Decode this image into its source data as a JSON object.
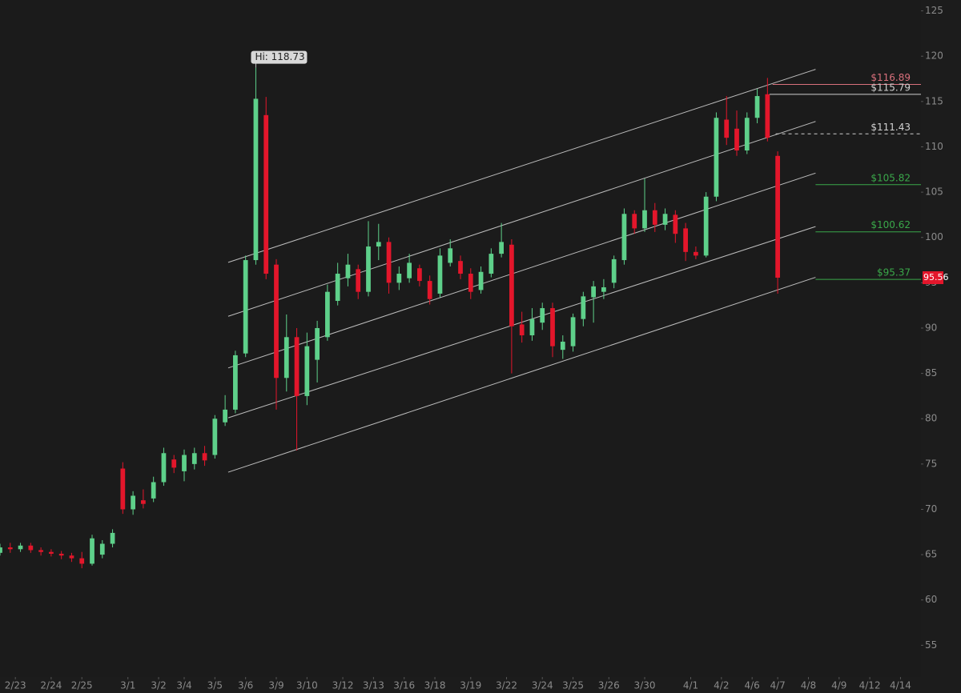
{
  "chart_data": {
    "type": "candlestick",
    "high_label": "Hi: 118.73",
    "last_price": 95.56,
    "up_color": "#5ed08a",
    "down_color": "#e3162b",
    "xlim": [
      0,
      90
    ],
    "ylim": [
      51.5,
      126.2
    ],
    "yticks": [
      55,
      60,
      65,
      70,
      75,
      80,
      85,
      90,
      95,
      100,
      105,
      110,
      115,
      120,
      125
    ],
    "xticks": [
      {
        "value": 1.5,
        "label": "2/23"
      },
      {
        "value": 5,
        "label": "2/24"
      },
      {
        "value": 8,
        "label": "2/25"
      },
      {
        "value": 12.5,
        "label": "3/1"
      },
      {
        "value": 15.5,
        "label": "3/2"
      },
      {
        "value": 18,
        "label": "3/4"
      },
      {
        "value": 21,
        "label": "3/5"
      },
      {
        "value": 24,
        "label": "3/6"
      },
      {
        "value": 27,
        "label": "3/9"
      },
      {
        "value": 30,
        "label": "3/10"
      },
      {
        "value": 33.5,
        "label": "3/12"
      },
      {
        "value": 36.5,
        "label": "3/13"
      },
      {
        "value": 39.5,
        "label": "3/16"
      },
      {
        "value": 42.5,
        "label": "3/18"
      },
      {
        "value": 46,
        "label": "3/19"
      },
      {
        "value": 49.5,
        "label": "3/22"
      },
      {
        "value": 53,
        "label": "3/24"
      },
      {
        "value": 56,
        "label": "3/25"
      },
      {
        "value": 59.5,
        "label": "3/26"
      },
      {
        "value": 63,
        "label": "3/30"
      },
      {
        "value": 67.5,
        "label": "4/1"
      },
      {
        "value": 70.5,
        "label": "4/2"
      },
      {
        "value": 73.5,
        "label": "4/6"
      },
      {
        "value": 76,
        "label": "4/7"
      },
      {
        "value": 79,
        "label": "4/8"
      },
      {
        "value": 82,
        "label": "4/9"
      },
      {
        "value": 85,
        "label": "4/12"
      },
      {
        "value": 88,
        "label": "4/14"
      }
    ],
    "x": [
      0,
      1,
      2,
      3,
      4,
      5,
      6,
      7,
      8,
      9,
      10,
      11,
      12,
      13,
      14,
      15,
      16,
      17,
      18,
      19,
      20,
      21,
      22,
      23,
      24,
      25,
      26,
      27,
      28,
      29,
      30,
      31,
      32,
      33,
      34,
      35,
      36,
      37,
      38,
      39,
      40,
      41,
      42,
      43,
      44,
      45,
      46,
      47,
      48,
      49,
      50,
      51,
      52,
      53,
      54,
      55,
      56,
      57,
      58,
      59,
      60,
      61,
      62,
      63,
      64,
      65,
      66,
      67,
      68,
      69,
      70,
      71,
      72,
      73,
      74,
      75,
      76
    ],
    "open": [
      65.2,
      65.8,
      65.6,
      66.0,
      65.5,
      65.3,
      65.1,
      64.9,
      64.6,
      64.0,
      65.0,
      66.2,
      74.5,
      70.0,
      71.0,
      71.2,
      73.0,
      75.5,
      74.2,
      75.0,
      76.2,
      76.0,
      79.6,
      81.0,
      87.2,
      97.5,
      113.5,
      97.0,
      84.5,
      89.0,
      82.5,
      86.5,
      89.0,
      93.0,
      95.5,
      96.5,
      94.0,
      99.0,
      99.5,
      95.0,
      95.5,
      96.6,
      95.2,
      93.8,
      97.2,
      97.4,
      96.0,
      94.2,
      96.0,
      98.2,
      99.2,
      90.4,
      89.2,
      90.6,
      92.2,
      87.6,
      88.0,
      91.0,
      93.4,
      94.0,
      95.0,
      97.5,
      102.6,
      101.0,
      103.0,
      101.4,
      102.5,
      101.0,
      98.4,
      98.0,
      104.5,
      113.0,
      112.0,
      109.6,
      113.2,
      115.8,
      109.0
    ],
    "high": [
      66.2,
      66.3,
      66.3,
      66.3,
      65.8,
      65.6,
      65.4,
      65.2,
      65.3,
      67.2,
      66.6,
      67.8,
      75.2,
      72.0,
      72.2,
      73.6,
      76.8,
      76.0,
      76.6,
      76.8,
      77.0,
      80.4,
      82.6,
      87.5,
      98.0,
      118.73,
      115.5,
      97.6,
      91.5,
      90.0,
      89.5,
      90.8,
      94.8,
      97.2,
      98.2,
      97.0,
      101.8,
      101.5,
      100.0,
      96.8,
      98.2,
      97.0,
      95.8,
      98.8,
      99.8,
      98.0,
      96.6,
      96.8,
      98.8,
      101.6,
      99.8,
      91.8,
      92.2,
      92.8,
      92.8,
      89.2,
      91.6,
      94.0,
      95.2,
      95.4,
      98.0,
      103.2,
      103.0,
      106.5,
      103.8,
      103.2,
      103.0,
      101.6,
      99.0,
      105.0,
      113.8,
      115.6,
      114.0,
      113.8,
      116.4,
      117.6,
      109.5
    ],
    "low": [
      64.9,
      65.2,
      65.3,
      65.2,
      64.9,
      64.8,
      64.5,
      64.2,
      63.5,
      63.8,
      64.6,
      65.8,
      69.5,
      69.4,
      70.1,
      70.8,
      72.6,
      74.0,
      73.1,
      74.4,
      74.8,
      75.6,
      79.2,
      80.6,
      86.8,
      97.0,
      95.4,
      81.0,
      83.0,
      76.5,
      81.5,
      84.0,
      88.6,
      92.5,
      94.6,
      93.2,
      93.5,
      97.5,
      93.8,
      94.2,
      95.0,
      94.6,
      92.6,
      93.4,
      96.8,
      95.4,
      93.2,
      93.8,
      95.6,
      97.8,
      85.0,
      88.4,
      88.6,
      89.8,
      86.8,
      86.6,
      87.4,
      90.2,
      90.6,
      93.2,
      94.4,
      97.0,
      100.4,
      100.6,
      100.6,
      100.8,
      99.4,
      97.4,
      97.6,
      97.8,
      104.0,
      110.2,
      109.0,
      109.2,
      112.6,
      110.6,
      93.8
    ],
    "close": [
      65.8,
      65.6,
      66.0,
      65.5,
      65.3,
      65.1,
      64.9,
      64.6,
      64.0,
      66.8,
      66.2,
      67.4,
      70.0,
      71.5,
      70.6,
      73.0,
      76.2,
      74.6,
      76.0,
      76.2,
      75.4,
      80.0,
      81.0,
      87.0,
      97.5,
      115.3,
      96.0,
      84.5,
      89.0,
      82.5,
      88.0,
      90.0,
      94.0,
      96.0,
      97.0,
      94.0,
      99.0,
      99.5,
      95.0,
      96.0,
      97.2,
      95.2,
      93.2,
      98.0,
      98.8,
      96.0,
      94.0,
      96.2,
      98.2,
      99.5,
      90.2,
      89.2,
      91.0,
      92.2,
      88.0,
      88.5,
      91.2,
      93.5,
      94.6,
      94.5,
      97.6,
      102.6,
      101.0,
      103.0,
      101.4,
      102.6,
      100.4,
      98.4,
      98.0,
      104.5,
      113.2,
      111.0,
      109.6,
      113.2,
      115.6,
      111.0,
      95.56
    ],
    "channel_lines": [
      {
        "x": [
          22.3,
          79.7
        ],
        "y": [
          97.25,
          118.55
        ]
      },
      {
        "x": [
          22.3,
          79.7
        ],
        "y": [
          91.3,
          112.8
        ]
      },
      {
        "x": [
          22.3,
          79.7
        ],
        "y": [
          85.6,
          107.1
        ]
      },
      {
        "x": [
          22.3,
          79.7
        ],
        "y": [
          80.1,
          101.2
        ]
      },
      {
        "x": [
          22.3,
          79.7
        ],
        "y": [
          74.1,
          95.6
        ]
      }
    ],
    "levels": [
      {
        "label": "$116.89",
        "value": 116.89,
        "color": "#d9707c",
        "from": 75.5,
        "dashed": false
      },
      {
        "label": "$115.79",
        "value": 115.79,
        "color": "#d0d0d0",
        "from": 75.2,
        "dashed": false
      },
      {
        "label": "$111.43",
        "value": 111.43,
        "color": "#d0d0d0",
        "from": 75.8,
        "dashed": true
      },
      {
        "label": "$105.82",
        "value": 105.82,
        "color": "#3aa84a",
        "from": 79.7,
        "dashed": false
      },
      {
        "label": "$100.62",
        "value": 100.62,
        "color": "#3aa84a",
        "from": 79.7,
        "dashed": false
      },
      {
        "label": "$95.37",
        "value": 95.37,
        "color": "#3aa84a",
        "from": 79.7,
        "dashed": false
      }
    ]
  }
}
